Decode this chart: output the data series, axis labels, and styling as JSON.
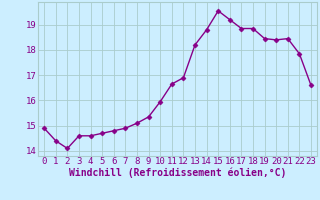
{
  "x": [
    0,
    1,
    2,
    3,
    4,
    5,
    6,
    7,
    8,
    9,
    10,
    11,
    12,
    13,
    14,
    15,
    16,
    17,
    18,
    19,
    20,
    21,
    22,
    23
  ],
  "y": [
    14.9,
    14.4,
    14.1,
    14.6,
    14.6,
    14.7,
    14.8,
    14.9,
    15.1,
    15.35,
    15.95,
    16.65,
    16.9,
    18.2,
    18.8,
    19.55,
    19.2,
    18.85,
    18.85,
    18.45,
    18.4,
    18.45,
    17.85,
    16.6
  ],
  "line_color": "#880088",
  "marker": "D",
  "markersize": 2.5,
  "linewidth": 1.0,
  "bg_color": "#cceeff",
  "grid_color": "#aacccc",
  "xlabel": "Windchill (Refroidissement éolien,°C)",
  "xlabel_fontsize": 7,
  "tick_fontsize": 6.5,
  "ylim": [
    13.8,
    19.9
  ],
  "xlim": [
    -0.5,
    23.5
  ],
  "yticks": [
    14,
    15,
    16,
    17,
    18,
    19
  ],
  "xticks": [
    0,
    1,
    2,
    3,
    4,
    5,
    6,
    7,
    8,
    9,
    10,
    11,
    12,
    13,
    14,
    15,
    16,
    17,
    18,
    19,
    20,
    21,
    22,
    23
  ]
}
